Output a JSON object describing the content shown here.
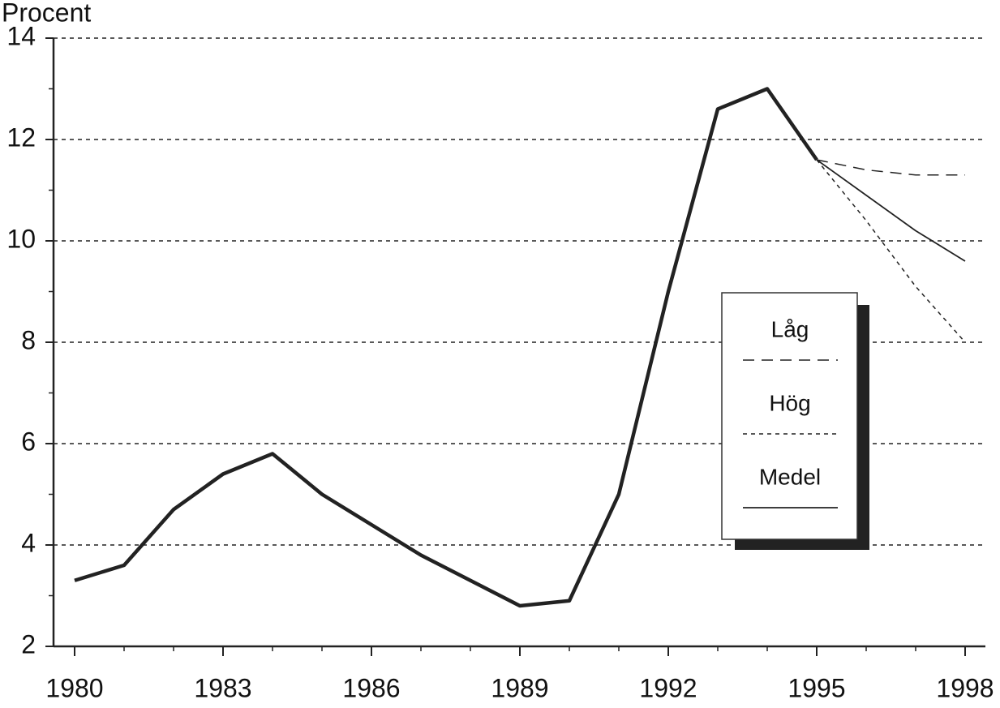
{
  "chart_data": {
    "type": "line",
    "y_label": "Procent",
    "x": [
      1980,
      1981,
      1982,
      1983,
      1984,
      1985,
      1986,
      1987,
      1988,
      1989,
      1990,
      1991,
      1992,
      1993,
      1994,
      1995,
      1996,
      1997,
      1998
    ],
    "series": [
      {
        "color": "#222",
        "style": "thick",
        "values": [
          3.3,
          3.6,
          4.7,
          5.4,
          5.8,
          5.0,
          4.4,
          3.8,
          3.3,
          2.8,
          2.9,
          5.0,
          9.0,
          12.6,
          13.0,
          11.6,
          null,
          null,
          null
        ]
      },
      {
        "name": "Låg",
        "color": "#222",
        "style": "dashed",
        "values": [
          null,
          null,
          null,
          null,
          null,
          null,
          null,
          null,
          null,
          null,
          null,
          null,
          null,
          null,
          null,
          11.6,
          11.4,
          11.3,
          11.3
        ]
      },
      {
        "name": "Hög",
        "color": "#222",
        "style": "dotted",
        "values": [
          null,
          null,
          null,
          null,
          null,
          null,
          null,
          null,
          null,
          null,
          null,
          null,
          null,
          null,
          null,
          11.6,
          10.4,
          9.1,
          8.0
        ]
      },
      {
        "name": "Medel",
        "color": "#222",
        "style": "solid",
        "values": [
          null,
          null,
          null,
          null,
          null,
          null,
          null,
          null,
          null,
          null,
          null,
          null,
          null,
          null,
          null,
          11.6,
          10.9,
          10.2,
          9.6
        ]
      }
    ],
    "xlim": [
      1980,
      1998
    ],
    "xticks": [
      1980,
      1983,
      1986,
      1989,
      1992,
      1995,
      1998
    ],
    "ylim": [
      2,
      14
    ],
    "yticks": [
      2,
      4,
      6,
      8,
      10,
      12,
      14
    ],
    "grid": true
  }
}
